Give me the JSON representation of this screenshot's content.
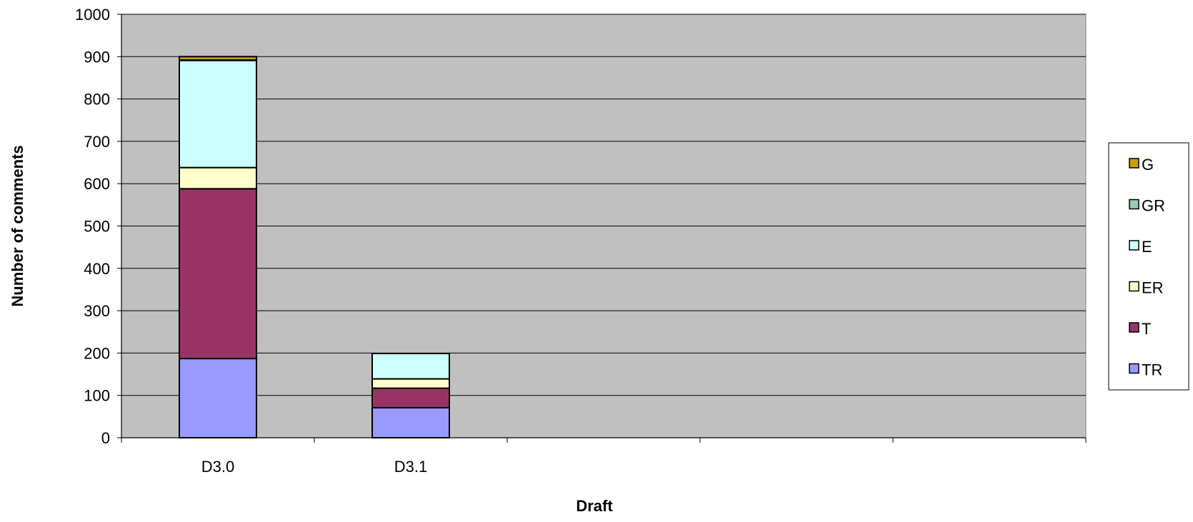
{
  "chart_data": {
    "type": "bar",
    "stacked": true,
    "categories": [
      "D3.0",
      "D3.1",
      "",
      "",
      ""
    ],
    "series": [
      {
        "name": "TR",
        "values": [
          187,
          71,
          0,
          0,
          0
        ],
        "color": "#9999ff"
      },
      {
        "name": "T",
        "values": [
          401,
          46,
          0,
          0,
          0
        ],
        "color": "#993366"
      },
      {
        "name": "ER",
        "values": [
          50,
          22,
          0,
          0,
          0
        ],
        "color": "#ffffcc"
      },
      {
        "name": "E",
        "values": [
          253,
          60,
          0,
          0,
          0
        ],
        "color": "#ccffff"
      },
      {
        "name": "GR",
        "values": [
          1,
          0,
          0,
          0,
          0
        ],
        "color": "#99ccb4"
      },
      {
        "name": "G",
        "values": [
          8,
          0,
          0,
          0,
          0
        ],
        "color": "#c8a000"
      }
    ],
    "legend_order": [
      "G",
      "GR",
      "E",
      "ER",
      "T",
      "TR"
    ],
    "legend_position": "right",
    "xlabel": "Draft",
    "ylabel": "Number of comments",
    "ylim": [
      0,
      1000
    ],
    "yticks": [
      "0",
      "100",
      "200",
      "300",
      "400",
      "500",
      "600",
      "700",
      "800",
      "900",
      "1000"
    ],
    "grid": true,
    "plot_background": "#c0c0c0"
  }
}
